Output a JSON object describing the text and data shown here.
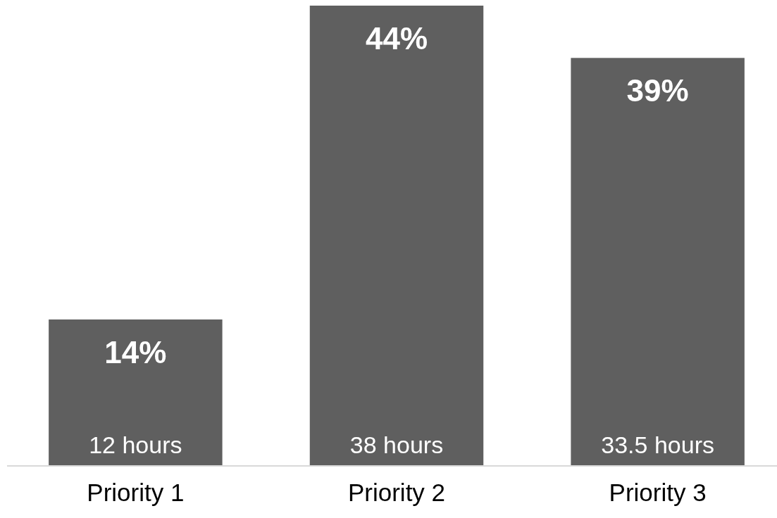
{
  "chart_data": {
    "type": "bar",
    "categories": [
      "Priority 1",
      "Priority 2",
      "Priority 3"
    ],
    "values": [
      14,
      44,
      39
    ],
    "color": "#5f5f5f",
    "value_labels": [
      "14%",
      "44%",
      "39%"
    ],
    "ylim": [
      0,
      44
    ],
    "tick_labels": "x",
    "annotations": [
      {
        "text": "12 hours",
        "x": "Priority 1",
        "y": 0
      },
      {
        "text": "38 hours",
        "x": "Priority 2",
        "y": 0
      },
      {
        "text": "33.5 hours",
        "x": "Priority 3",
        "y": 0
      }
    ]
  }
}
